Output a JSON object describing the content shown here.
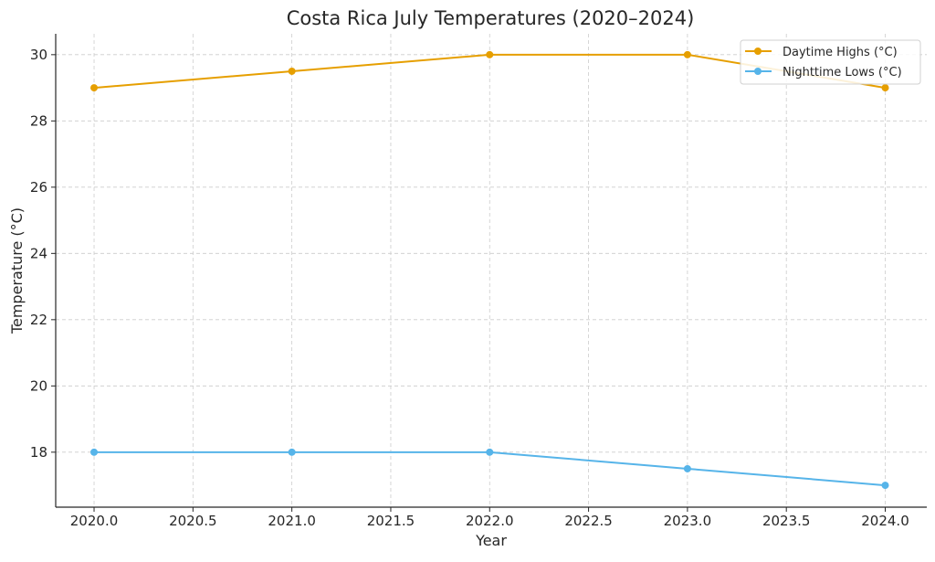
{
  "chart_data": {
    "type": "line",
    "title": "Costa Rica July Temperatures (2020–2024)",
    "xlabel": "Year",
    "ylabel": "Temperature (°C)",
    "x": [
      2020,
      2021,
      2022,
      2023,
      2024
    ],
    "xlim": [
      2019.806,
      2024.21
    ],
    "ylim": [
      16.34,
      30.63
    ],
    "xticks": [
      "2020.0",
      "2020.5",
      "2021.0",
      "2021.5",
      "2022.0",
      "2022.5",
      "2023.0",
      "2023.5",
      "2024.0"
    ],
    "yticks": [
      "18",
      "20",
      "22",
      "24",
      "26",
      "28",
      "30"
    ],
    "grid": true,
    "legend_position": "top-right",
    "series": [
      {
        "name": "Daytime Highs (°C)",
        "values": [
          29,
          29.5,
          30,
          30,
          29
        ],
        "color": "#E69F00"
      },
      {
        "name": "Nighttime Lows (°C)",
        "values": [
          18,
          18,
          18,
          17.5,
          17
        ],
        "color": "#56B4E9"
      }
    ]
  }
}
